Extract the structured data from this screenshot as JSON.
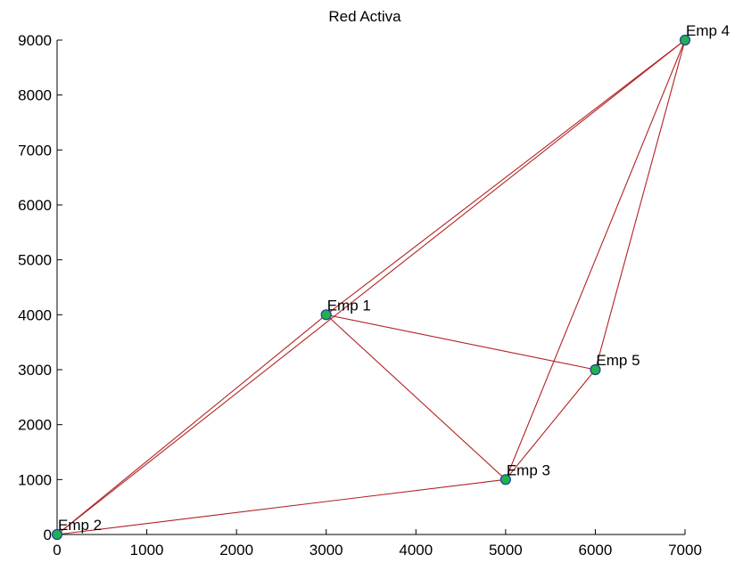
{
  "chart_data": {
    "type": "scatter",
    "title": "Red Activa",
    "xlabel": "",
    "ylabel": "",
    "xlim": [
      0,
      7000
    ],
    "ylim": [
      0,
      9000
    ],
    "x_ticks": [
      "0",
      "1000",
      "2000",
      "3000",
      "4000",
      "5000",
      "6000",
      "7000"
    ],
    "y_ticks": [
      "0",
      "1000",
      "2000",
      "3000",
      "4000",
      "5000",
      "6000",
      "7000",
      "8000",
      "9000"
    ],
    "grid": false,
    "nodes": [
      {
        "label": "Emp 1",
        "x": 3000,
        "y": 4000
      },
      {
        "label": "Emp 2",
        "x": 0,
        "y": 0
      },
      {
        "label": "Emp 3",
        "x": 5000,
        "y": 1000
      },
      {
        "label": "Emp 4",
        "x": 7000,
        "y": 9000
      },
      {
        "label": "Emp 5",
        "x": 6000,
        "y": 3000
      }
    ],
    "edges": [
      [
        "Emp 2",
        "Emp 4"
      ],
      [
        "Emp 2",
        "Emp 1"
      ],
      [
        "Emp 1",
        "Emp 4"
      ],
      [
        "Emp 2",
        "Emp 3"
      ],
      [
        "Emp 1",
        "Emp 3"
      ],
      [
        "Emp 1",
        "Emp 5"
      ],
      [
        "Emp 3",
        "Emp 4"
      ],
      [
        "Emp 3",
        "Emp 5"
      ],
      [
        "Emp 5",
        "Emp 4"
      ]
    ],
    "colors": {
      "edge": "#b22222",
      "node_fill": "#22b14c",
      "node_stroke": "#1a3fa0"
    }
  }
}
